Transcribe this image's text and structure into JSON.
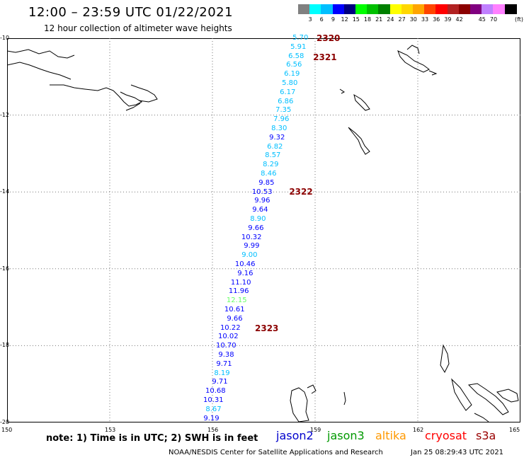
{
  "header": {
    "title": "12:00 – 23:59 UTC 01/22/2021",
    "subtitle": "12 hour collection of altimeter wave heights"
  },
  "colorbar": {
    "colors": [
      "#808080",
      "#00ffff",
      "#00bfff",
      "#0000ff",
      "#000080",
      "#00ff00",
      "#00c000",
      "#008000",
      "#ffff00",
      "#ffd700",
      "#ffa500",
      "#ff4500",
      "#ff0000",
      "#b22222",
      "#8b0000",
      "#800080",
      "#c080ff",
      "#ff80ff",
      "#000000"
    ],
    "labels": [
      "3",
      "6",
      "9",
      "12",
      "15",
      "18",
      "21",
      "24",
      "27",
      "30",
      "33",
      "36",
      "39",
      "42",
      "45",
      "70"
    ],
    "unit": "(ft)"
  },
  "axes": {
    "lat_labels": [
      "-10",
      "-12",
      "-14",
      "-16",
      "-18",
      "-20"
    ],
    "lon_labels": [
      "150",
      "153",
      "156",
      "159",
      "162",
      "165"
    ],
    "lat_values": [
      -10,
      -12,
      -14,
      -16,
      -18,
      -20
    ],
    "lon_values": [
      150,
      153,
      156,
      159,
      162,
      165
    ],
    "lat_range": [
      -20,
      -10
    ],
    "lon_range": [
      150,
      165
    ]
  },
  "passes": [
    {
      "label": "2320",
      "lat": -10.0,
      "lon": 159.0
    },
    {
      "label": "2321",
      "lat": -10.5,
      "lon": 158.9
    },
    {
      "label": "2322",
      "lat": -14.0,
      "lon": 158.2
    },
    {
      "label": "2323",
      "lat": -17.55,
      "lon": 157.2
    }
  ],
  "observations": [
    {
      "v": "5.70",
      "c": "#00bfff"
    },
    {
      "v": "5.91",
      "c": "#00bfff"
    },
    {
      "v": "6.58",
      "c": "#00bfff"
    },
    {
      "v": "6.56",
      "c": "#00bfff"
    },
    {
      "v": "6.19",
      "c": "#00bfff"
    },
    {
      "v": "5.80",
      "c": "#00bfff"
    },
    {
      "v": "6.17",
      "c": "#00bfff"
    },
    {
      "v": "6.86",
      "c": "#00bfff"
    },
    {
      "v": "7.35",
      "c": "#00bfff"
    },
    {
      "v": "7.96",
      "c": "#00bfff"
    },
    {
      "v": "8.30",
      "c": "#00bfff"
    },
    {
      "v": "9.32",
      "c": "#0000ff"
    },
    {
      "v": "6.82",
      "c": "#00bfff"
    },
    {
      "v": "8.57",
      "c": "#00bfff"
    },
    {
      "v": "8.29",
      "c": "#00bfff"
    },
    {
      "v": "8.46",
      "c": "#00bfff"
    },
    {
      "v": "9.85",
      "c": "#0000ff"
    },
    {
      "v": "10.53",
      "c": "#0000ff"
    },
    {
      "v": "9.96",
      "c": "#0000ff"
    },
    {
      "v": "9.64",
      "c": "#0000ff"
    },
    {
      "v": "8.90",
      "c": "#00bfff"
    },
    {
      "v": "9.66",
      "c": "#0000ff"
    },
    {
      "v": "10.32",
      "c": "#0000ff"
    },
    {
      "v": "9.99",
      "c": "#0000ff"
    },
    {
      "v": "9.00",
      "c": "#00bfff"
    },
    {
      "v": "10.46",
      "c": "#0000ff"
    },
    {
      "v": "9.16",
      "c": "#0000ff"
    },
    {
      "v": "11.10",
      "c": "#0000ff"
    },
    {
      "v": "11.96",
      "c": "#0000ff"
    },
    {
      "v": "12.15",
      "c": "#66ff66"
    },
    {
      "v": "10.61",
      "c": "#0000ff"
    },
    {
      "v": "9.66",
      "c": "#0000ff"
    },
    {
      "v": "10.22",
      "c": "#0000ff"
    },
    {
      "v": "10.02",
      "c": "#0000ff"
    },
    {
      "v": "10.70",
      "c": "#0000ff"
    },
    {
      "v": "9.38",
      "c": "#0000ff"
    },
    {
      "v": "9.71",
      "c": "#0000ff"
    },
    {
      "v": "8.19",
      "c": "#00bfff"
    },
    {
      "v": "9.71",
      "c": "#0000ff"
    },
    {
      "v": "10.68",
      "c": "#0000ff"
    },
    {
      "v": "10.31",
      "c": "#0000ff"
    },
    {
      "v": "8.67",
      "c": "#00bfff"
    },
    {
      "v": "9.19",
      "c": "#0000ff"
    }
  ],
  "track": {
    "start": {
      "lat": -10.0,
      "lon": 158.8
    },
    "end": {
      "lat": -19.9,
      "lon": 156.2
    }
  },
  "footer": {
    "note": "note:  1) Time is in UTC; 2) SWH is in feet",
    "satellites": [
      {
        "name": "jason2",
        "color": "#0000cc"
      },
      {
        "name": "jason3",
        "color": "#009900"
      },
      {
        "name": "altika",
        "color": "#ff9900"
      },
      {
        "name": "cryosat",
        "color": "#ff0000"
      },
      {
        "name": "s3a",
        "color": "#990000"
      }
    ],
    "credit": "NOAA/NESDIS Center for Satellite Applications and Research",
    "timestamp": "Jan 25 08:29:43 UTC 2021"
  }
}
